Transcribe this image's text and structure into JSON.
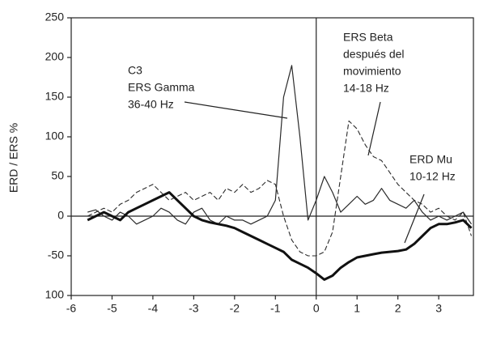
{
  "chart_data": {
    "type": "line",
    "y_label": "ERD / ERS %",
    "xlim": [
      -6,
      3.85
    ],
    "ylim": [
      -100,
      250
    ],
    "xticks": [
      -6,
      -5,
      -4,
      -3,
      -2,
      -1,
      0,
      1,
      2,
      3
    ],
    "yticks": [
      {
        "value": -100,
        "label": "100"
      },
      -50,
      0,
      50,
      100,
      150,
      200,
      250
    ],
    "x": [
      -5.6,
      -5.4,
      -5.2,
      -5.0,
      -4.8,
      -4.6,
      -4.4,
      -4.2,
      -4.0,
      -3.8,
      -3.6,
      -3.4,
      -3.2,
      -3.0,
      -2.8,
      -2.6,
      -2.4,
      -2.2,
      -2.0,
      -1.8,
      -1.6,
      -1.4,
      -1.2,
      -1.0,
      -0.8,
      -0.6,
      -0.4,
      -0.2,
      0.0,
      0.2,
      0.4,
      0.6,
      0.8,
      1.0,
      1.2,
      1.4,
      1.6,
      1.8,
      2.0,
      2.2,
      2.4,
      2.6,
      2.8,
      3.0,
      3.2,
      3.4,
      3.6,
      3.8
    ],
    "series": [
      {
        "color": "#2a2a2a",
        "style": "solid",
        "width": 1.2,
        "values": [
          5,
          8,
          0,
          -5,
          5,
          0,
          -10,
          -5,
          0,
          10,
          5,
          -5,
          -10,
          5,
          10,
          -5,
          -10,
          0,
          -5,
          -5,
          -10,
          -5,
          0,
          20,
          150,
          190,
          100,
          -5,
          20,
          50,
          30,
          5,
          15,
          25,
          15,
          20,
          35,
          20,
          15,
          10,
          20,
          5,
          -5,
          0,
          -5,
          0,
          5,
          -10
        ]
      },
      {
        "color": "#2a2a2a",
        "style": "dashed",
        "width": 1.1,
        "values": [
          0,
          5,
          10,
          5,
          15,
          20,
          30,
          35,
          40,
          30,
          20,
          25,
          30,
          20,
          25,
          30,
          20,
          35,
          30,
          40,
          30,
          35,
          45,
          40,
          0,
          -30,
          -45,
          -50,
          -50,
          -45,
          -20,
          50,
          120,
          110,
          90,
          75,
          70,
          55,
          40,
          30,
          20,
          15,
          5,
          10,
          0,
          -5,
          5,
          -25
        ]
      },
      {
        "color": "#111111",
        "style": "solid",
        "width": 3,
        "values": [
          -5,
          0,
          5,
          0,
          -5,
          5,
          10,
          15,
          20,
          25,
          30,
          20,
          10,
          0,
          -5,
          -8,
          -10,
          -12,
          -15,
          -20,
          -25,
          -30,
          -35,
          -40,
          -45,
          -55,
          -60,
          -65,
          -72,
          -80,
          -75,
          -65,
          -58,
          -52,
          -50,
          -48,
          -46,
          -45,
          -44,
          -42,
          -35,
          -25,
          -15,
          -10,
          -10,
          -8,
          -5,
          -15
        ]
      }
    ],
    "annotations": [
      [
        "C3",
        "ERS Gamma",
        "36-40 Hz"
      ],
      [
        "ERS Beta",
        "después del",
        "movimiento",
        "14-18 Hz"
      ],
      [
        "ERD Mu",
        "10-12 Hz"
      ]
    ]
  }
}
